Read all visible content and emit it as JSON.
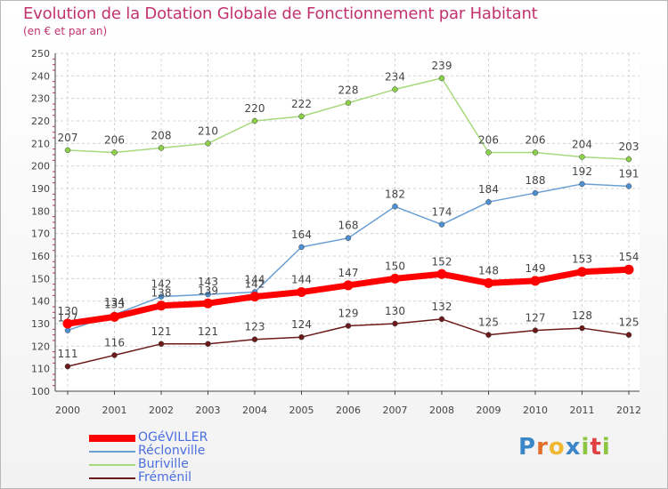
{
  "chart_data": {
    "type": "line",
    "title": "Evolution de la Dotation Globale de Fonctionnement par Habitant",
    "subtitle": "(en € et par an)",
    "categories": [
      "2000",
      "2001",
      "2002",
      "2003",
      "2004",
      "2005",
      "2006",
      "2007",
      "2008",
      "2009",
      "2010",
      "2011",
      "2012"
    ],
    "ylim": [
      100,
      250
    ],
    "yticks": [
      "100",
      "110",
      "120",
      "130",
      "140",
      "150",
      "160",
      "170",
      "180",
      "190",
      "200",
      "210",
      "220",
      "230",
      "240",
      "250"
    ],
    "grid": true,
    "legend_position": "bottom-left",
    "series": [
      {
        "name": "Buriville",
        "color": "#8cd04a",
        "line_color": "#a6d97c",
        "width": 1.5,
        "values": [
          207,
          206,
          208,
          210,
          220,
          222,
          228,
          234,
          239,
          206,
          206,
          204,
          203
        ],
        "labels": [
          "207",
          "206",
          "208",
          "210",
          "220",
          "222",
          "228",
          "234",
          "239",
          "206",
          "206",
          "204",
          "203"
        ]
      },
      {
        "name": "Réclonville",
        "color": "#4d8fd1",
        "line_color": "#6a9fd4",
        "width": 1.5,
        "values": [
          127,
          134,
          142,
          143,
          144,
          164,
          168,
          182,
          174,
          184,
          188,
          192,
          191
        ],
        "labels": [
          "127",
          "134",
          "142",
          "143",
          "144",
          "164",
          "168",
          "182",
          "174",
          "184",
          "188",
          "192",
          "191"
        ]
      },
      {
        "name": "Fréménil",
        "color": "#6b1a1a",
        "line_color": "#6b1a1a",
        "width": 1.5,
        "values": [
          111,
          116,
          121,
          121,
          123,
          124,
          129,
          130,
          132,
          125,
          127,
          128,
          125
        ],
        "labels": [
          "111",
          "116",
          "121",
          "121",
          "123",
          "124",
          "129",
          "130",
          "132",
          "125",
          "127",
          "128",
          "125"
        ]
      },
      {
        "name": "OGéVILLER",
        "color": "#ff0000",
        "line_color": "#ff0000",
        "width": 7,
        "values": [
          130,
          133,
          138,
          139,
          142,
          144,
          147,
          150,
          152,
          148,
          149,
          153,
          154
        ],
        "labels": [
          "130",
          "133",
          "138",
          "139",
          "142",
          "144",
          "147",
          "150",
          "152",
          "148",
          "149",
          "153",
          "154"
        ]
      }
    ],
    "legend": [
      {
        "name": "OGéVILLER",
        "color": "#ff0000",
        "text_color": "#4a6fe0",
        "thick": true
      },
      {
        "name": "Réclonville",
        "color": "#6a9fd4",
        "text_color": "#4a6fe0",
        "thick": false
      },
      {
        "name": "Buriville",
        "color": "#a6d97c",
        "text_color": "#4a6fe0",
        "thick": false
      },
      {
        "name": "Fréménil",
        "color": "#6b1a1a",
        "text_color": "#4a6fe0",
        "thick": false
      }
    ]
  },
  "logo": {
    "text": "Proxiti"
  }
}
